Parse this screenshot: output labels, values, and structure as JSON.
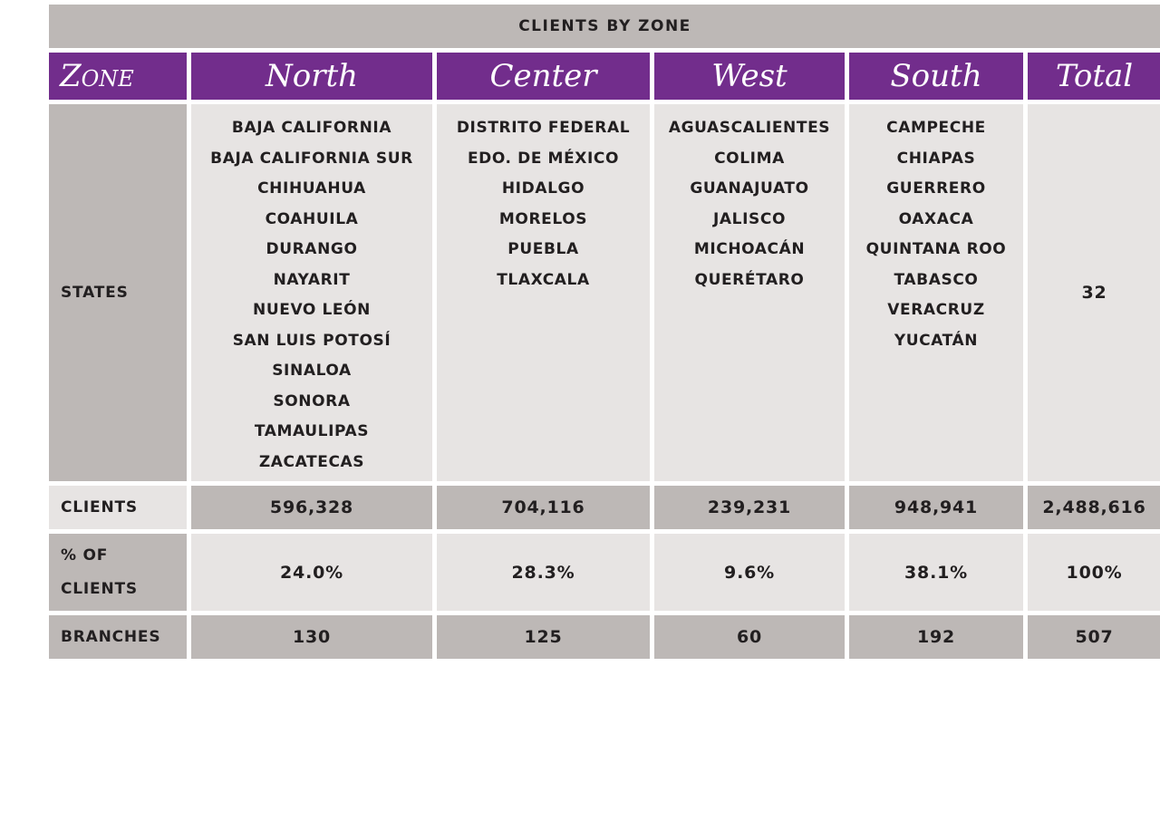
{
  "title": "CLIENTS BY ZONE",
  "header": {
    "zone_label": "Zone",
    "columns": [
      "North",
      "Center",
      "West",
      "South",
      "Total"
    ]
  },
  "rows": {
    "states": {
      "label": "STATES",
      "north": [
        "BAJA CALIFORNIA",
        "BAJA CALIFORNIA SUR",
        "CHIHUAHUA",
        "COAHUILA",
        "DURANGO",
        "NAYARIT",
        "NUEVO LEÓN",
        "SAN LUIS POTOSÍ",
        "SINALOA",
        "SONORA",
        "TAMAULIPAS",
        "ZACATECAS"
      ],
      "center": [
        "DISTRITO FEDERAL",
        "EDO. DE MÉXICO",
        "HIDALGO",
        "MORELOS",
        "PUEBLA",
        "TLAXCALA"
      ],
      "west": [
        "AGUASCALIENTES",
        "COLIMA",
        "GUANAJUATO",
        "JALISCO",
        "MICHOACÁN",
        "QUERÉTARO"
      ],
      "south": [
        "CAMPECHE",
        "CHIAPAS",
        "GUERRERO",
        "OAXACA",
        "QUINTANA ROO",
        "TABASCO",
        "VERACRUZ",
        "YUCATÁN"
      ],
      "total": "32"
    },
    "clients": {
      "label": "CLIENTS",
      "values": [
        "596,328",
        "704,116",
        "239,231",
        "948,941",
        "2,488,616"
      ]
    },
    "pct_clients": {
      "label": "% OF CLIENTS",
      "values": [
        "24.0%",
        "28.3%",
        "9.6%",
        "38.1%",
        "100%"
      ]
    },
    "branches": {
      "label": "BRANCHES",
      "values": [
        "130",
        "125",
        "60",
        "192",
        "507"
      ]
    }
  },
  "colors": {
    "header_purple": "#722d8c",
    "dark_gray": "#bdb8b6",
    "light_gray": "#e7e4e3"
  }
}
